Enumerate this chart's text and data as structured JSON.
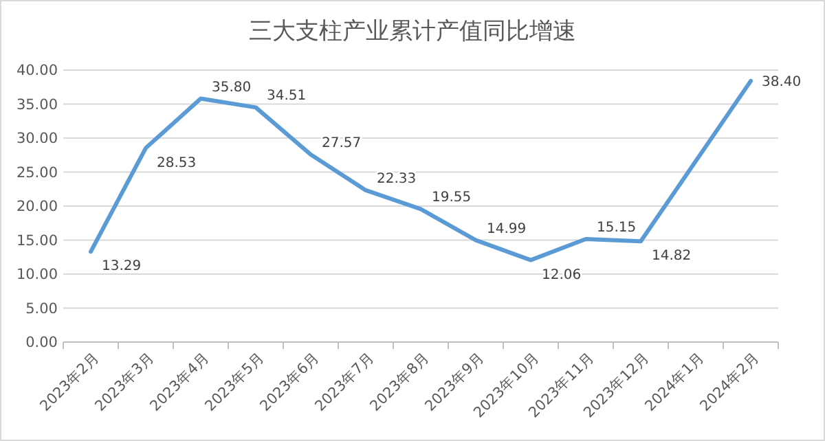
{
  "chart_data": {
    "type": "line",
    "title": "三大支柱产业累计产值同比增速",
    "categories": [
      "2023年2月",
      "2023年3月",
      "2023年4月",
      "2023年5月",
      "2023年6月",
      "2023年7月",
      "2023年8月",
      "2023年9月",
      "2023年10月",
      "2023年11月",
      "2023年12月",
      "2024年1月",
      "2024年2月"
    ],
    "series": [
      {
        "color": "#5b9bd5",
        "values": [
          13.29,
          28.53,
          35.8,
          34.51,
          27.57,
          22.33,
          19.55,
          14.99,
          12.06,
          15.15,
          14.82,
          null,
          38.4
        ]
      }
    ],
    "value_labels": [
      "13.29",
      "28.53",
      "35.80",
      "34.51",
      "27.57",
      "22.33",
      "19.55",
      "14.99",
      "12.06",
      "15.15",
      "14.82",
      null,
      "38.40"
    ],
    "ylim": [
      0,
      40
    ],
    "yticks": [
      {
        "value": 0,
        "label": "0.00"
      },
      {
        "value": 5,
        "label": "5.00"
      },
      {
        "value": 10,
        "label": "10.00"
      },
      {
        "value": 15,
        "label": "15.00"
      },
      {
        "value": 20,
        "label": "20.00"
      },
      {
        "value": 25,
        "label": "25.00"
      },
      {
        "value": 30,
        "label": "30.00"
      },
      {
        "value": 35,
        "label": "35.00"
      },
      {
        "value": 40,
        "label": "40.00"
      }
    ],
    "grid": "y",
    "marker": "none",
    "line_style": "solid"
  }
}
